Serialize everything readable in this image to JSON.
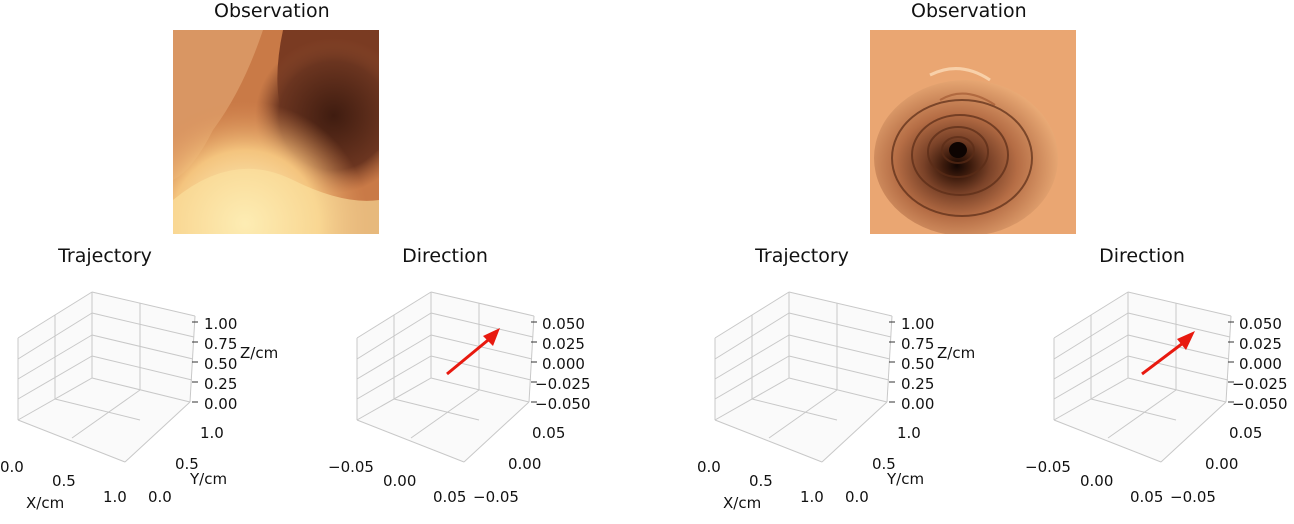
{
  "figures": [
    {
      "observation": {
        "title": "Observation",
        "image": "endoscopic-view-a",
        "palette": {
          "light": "#fff1b8",
          "mid": "#e2955f",
          "dark": "#4a2414",
          "wall": "#c76f40"
        }
      },
      "trajectory": {
        "title": "Trajectory",
        "x_label": "X/cm",
        "y_label": "Y/cm",
        "z_label": "Z/cm",
        "x_ticks": [
          "0.0",
          "0.5",
          "1.0"
        ],
        "y_ticks": [
          "0.0",
          "0.5",
          "1.0"
        ],
        "z_ticks": [
          "1.00",
          "0.75",
          "0.50",
          "0.25",
          "0.00"
        ]
      },
      "direction": {
        "title": "Direction",
        "x_ticks": [
          "−0.05",
          "0.00",
          "0.05"
        ],
        "y_ticks": [
          "−0.05",
          "0.00",
          "0.05"
        ],
        "z_ticks": [
          "0.050",
          "0.025",
          "0.000",
          "−0.025",
          "−0.050"
        ],
        "arrow_color": "#e8190f"
      }
    },
    {
      "observation": {
        "title": "Observation",
        "image": "endoscopic-view-b",
        "palette": {
          "light": "#f6c08c",
          "mid": "#d98a5a",
          "dark": "#1e0d07",
          "wall": "#b86f48"
        }
      },
      "trajectory": {
        "title": "Trajectory",
        "x_label": "X/cm",
        "y_label": "Y/cm",
        "z_label": "Z/cm",
        "x_ticks": [
          "0.0",
          "0.5",
          "1.0"
        ],
        "y_ticks": [
          "0.0",
          "0.5",
          "1.0"
        ],
        "z_ticks": [
          "1.00",
          "0.75",
          "0.50",
          "0.25",
          "0.00"
        ]
      },
      "direction": {
        "title": "Direction",
        "x_ticks": [
          "−0.05",
          "0.00",
          "0.05"
        ],
        "y_ticks": [
          "−0.05",
          "0.00",
          "0.05"
        ],
        "z_ticks": [
          "0.050",
          "0.025",
          "0.000",
          "−0.025",
          "−0.050"
        ],
        "arrow_color": "#e8190f"
      }
    }
  ],
  "chart_data": [
    {
      "type": "scatter",
      "title": "Trajectory",
      "xlabel": "X/cm",
      "ylabel": "Y/cm",
      "zlabel": "Z/cm",
      "xlim": [
        0,
        1
      ],
      "ylim": [
        0,
        1
      ],
      "zlim": [
        0,
        1
      ],
      "points": [],
      "grid": true
    },
    {
      "type": "quiver3d",
      "title": "Direction",
      "xlim": [
        -0.05,
        0.05
      ],
      "ylim": [
        -0.05,
        0.05
      ],
      "zlim": [
        -0.05,
        0.05
      ],
      "arrow_color": "#e8190f",
      "grid": true
    },
    {
      "type": "scatter",
      "title": "Trajectory",
      "xlabel": "X/cm",
      "ylabel": "Y/cm",
      "zlabel": "Z/cm",
      "xlim": [
        0,
        1
      ],
      "ylim": [
        0,
        1
      ],
      "zlim": [
        0,
        1
      ],
      "points": [],
      "grid": true
    },
    {
      "type": "quiver3d",
      "title": "Direction",
      "xlim": [
        -0.05,
        0.05
      ],
      "ylim": [
        -0.05,
        0.05
      ],
      "zlim": [
        -0.05,
        0.05
      ],
      "arrow_color": "#e8190f",
      "grid": true
    }
  ]
}
